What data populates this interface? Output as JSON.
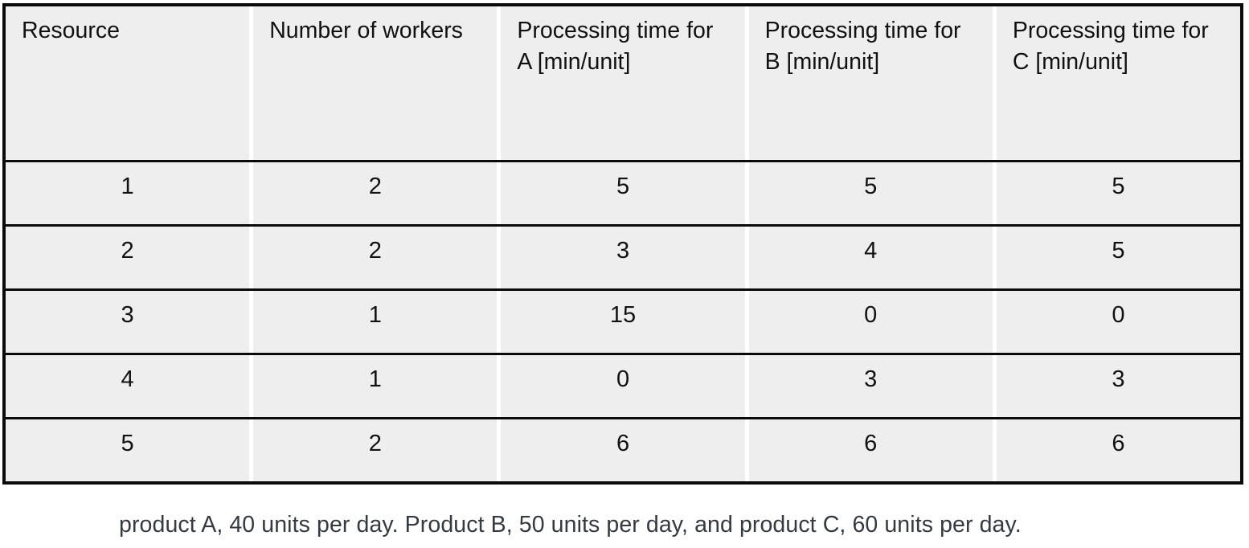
{
  "table": {
    "columns": [
      "Resource",
      "Number of workers",
      "Processing time for A [min/unit]",
      "Processing time for B [min/unit]",
      "Processing time for C [min/unit]"
    ],
    "rows": [
      [
        "1",
        "2",
        "5",
        "5",
        "5"
      ],
      [
        "2",
        "2",
        "3",
        "4",
        "5"
      ],
      [
        "3",
        "1",
        "15",
        "0",
        "0"
      ],
      [
        "4",
        "1",
        "0",
        "3",
        "3"
      ],
      [
        "5",
        "2",
        "6",
        "6",
        "6"
      ]
    ]
  },
  "caption": {
    "text": "product A, 40 units per day. Product B, 50 units per day, and product C, 60 units per day."
  },
  "colors": {
    "cell_background": "#eeeeee",
    "grid_black": "#0a0a0a",
    "vertical_separator": "#ffffff",
    "caption_text": "#343a40"
  }
}
